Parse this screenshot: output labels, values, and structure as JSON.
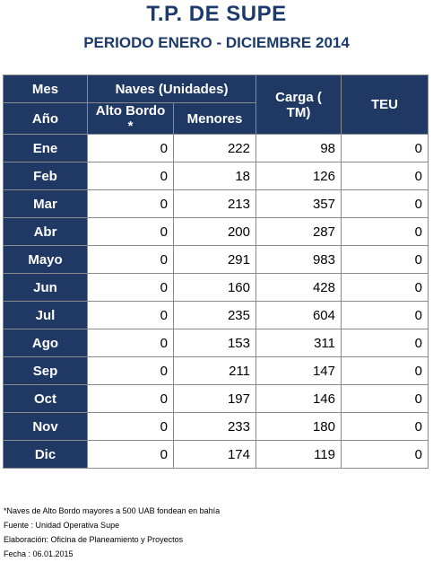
{
  "title": "T.P. DE SUPE",
  "subtitle": "PERIODO ENERO - DICIEMBRE 2014",
  "headers": {
    "mes": "Mes",
    "anio": "Año",
    "naves": "Naves (Unidades)",
    "alto_bordo": "Alto Bordo *",
    "menores": "Menores",
    "carga": "Carga ( TM)",
    "teu": "TEU"
  },
  "rows": [
    {
      "mes": "Ene",
      "alto_bordo": "0",
      "menores": "222",
      "carga": "98",
      "teu": "0"
    },
    {
      "mes": "Feb",
      "alto_bordo": "0",
      "menores": "18",
      "carga": "126",
      "teu": "0"
    },
    {
      "mes": "Mar",
      "alto_bordo": "0",
      "menores": "213",
      "carga": "357",
      "teu": "0"
    },
    {
      "mes": "Abr",
      "alto_bordo": "0",
      "menores": "200",
      "carga": "287",
      "teu": "0"
    },
    {
      "mes": "Mayo",
      "alto_bordo": "0",
      "menores": "291",
      "carga": "983",
      "teu": "0"
    },
    {
      "mes": "Jun",
      "alto_bordo": "0",
      "menores": "160",
      "carga": "428",
      "teu": "0"
    },
    {
      "mes": "Jul",
      "alto_bordo": "0",
      "menores": "235",
      "carga": "604",
      "teu": "0"
    },
    {
      "mes": "Ago",
      "alto_bordo": "0",
      "menores": "153",
      "carga": "311",
      "teu": "0"
    },
    {
      "mes": "Sep",
      "alto_bordo": "0",
      "menores": "211",
      "carga": "147",
      "teu": "0"
    },
    {
      "mes": "Oct",
      "alto_bordo": "0",
      "menores": "197",
      "carga": "146",
      "teu": "0"
    },
    {
      "mes": "Nov",
      "alto_bordo": "0",
      "menores": "233",
      "carga": "180",
      "teu": "0"
    },
    {
      "mes": "Dic",
      "alto_bordo": "0",
      "menores": "174",
      "carga": "119",
      "teu": "0"
    }
  ],
  "notes": {
    "footnote": "*Naves de Alto Bordo mayores a 500 UAB fondean en bahía",
    "fuente": "Fuente : Unidad Operativa Supe",
    "elaboracion": "Elaboración: Oficina de Planeamiento y Proyectos",
    "fecha": "Fecha : 06.01.2015"
  },
  "colors": {
    "header_bg": "#1f3864",
    "title": "#1c3a6b"
  }
}
